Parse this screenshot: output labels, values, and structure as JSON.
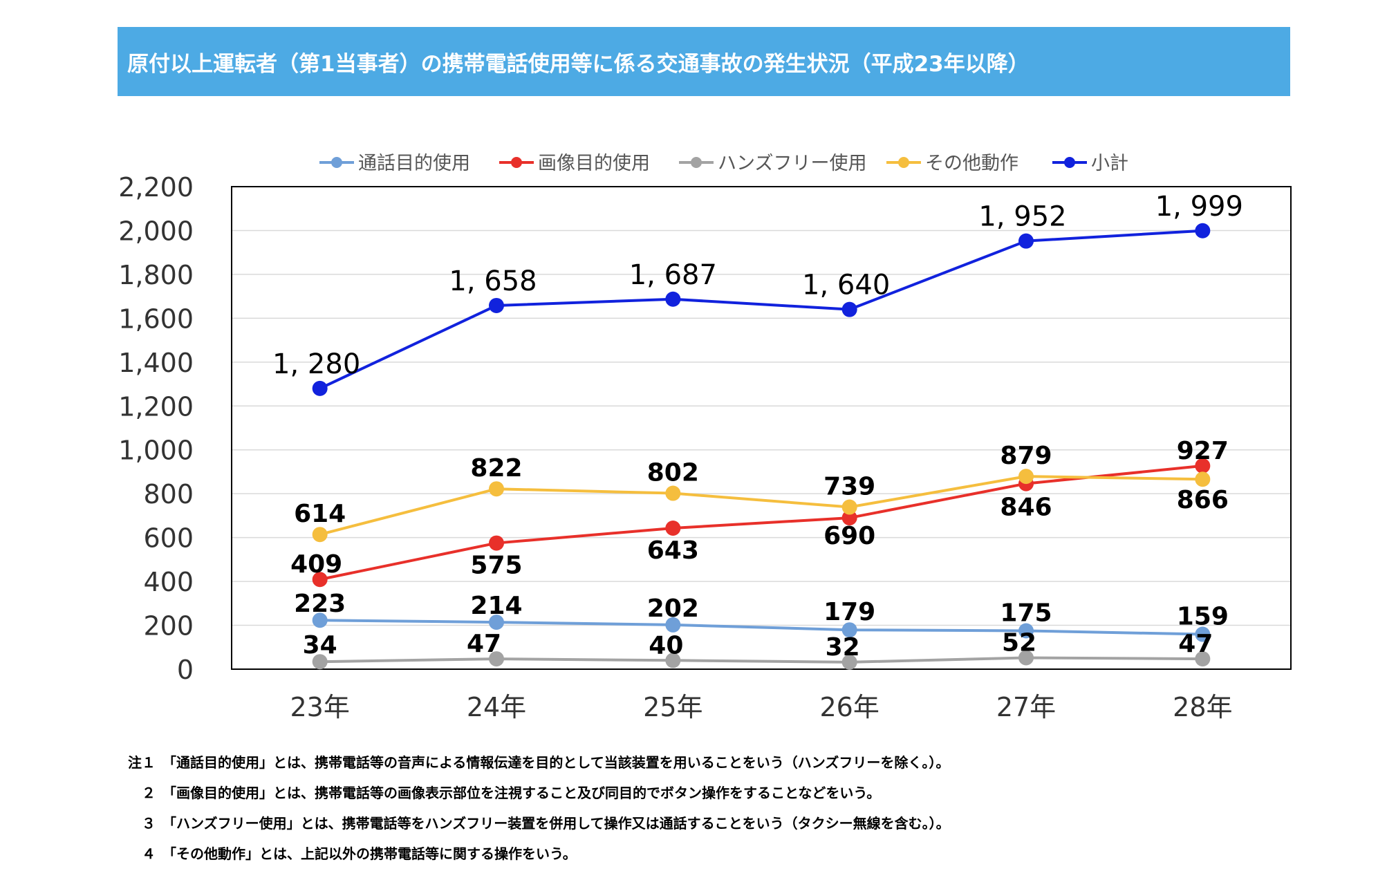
{
  "header": {
    "title": "原付以上運転者（第1当事者）の携帯電話使用等に係る交通事故の発生状況（平成23年以降）"
  },
  "chart_data": {
    "type": "line",
    "categories": [
      "23年",
      "24年",
      "25年",
      "26年",
      "27年",
      "28年"
    ],
    "ylim": [
      0,
      2200
    ],
    "y_ticks": [
      "0",
      "200",
      "400",
      "600",
      "800",
      "1,000",
      "1,200",
      "1,400",
      "1,600",
      "1,800",
      "2,000",
      "2,200"
    ],
    "grid": true,
    "legend_position": "top",
    "series": [
      {
        "name": "通話目的使用",
        "color": "#6f9fd8",
        "values": [
          223,
          214,
          202,
          179,
          175,
          159
        ],
        "labels": [
          "223",
          "214",
          "202",
          "179",
          "175",
          "159"
        ]
      },
      {
        "name": "画像目的使用",
        "color": "#e8302a",
        "values": [
          409,
          575,
          643,
          690,
          846,
          927
        ],
        "labels": [
          "409",
          "575",
          "643",
          "690",
          "846",
          "927"
        ]
      },
      {
        "name": "ハンズフリー使用",
        "color": "#a3a3a3",
        "values": [
          34,
          47,
          40,
          32,
          52,
          47
        ],
        "labels": [
          "34",
          "47",
          "40",
          "32",
          "52",
          "47"
        ]
      },
      {
        "name": "その他動作",
        "color": "#f5be3e",
        "values": [
          614,
          822,
          802,
          739,
          879,
          866
        ],
        "labels": [
          "614",
          "822",
          "802",
          "739",
          "879",
          "866"
        ]
      },
      {
        "name": "小計",
        "color": "#1122dd",
        "values": [
          1280,
          1658,
          1687,
          1640,
          1952,
          1999
        ],
        "labels": [
          "1, 280",
          "1, 658",
          "1, 687",
          "1, 640",
          "1, 952",
          "1, 999"
        ]
      }
    ]
  },
  "notes": [
    {
      "num": "注１",
      "text": "「通話目的使用」とは、携帯電話等の音声による情報伝達を目的として当該装置を用いることをいう（ハンズフリーを除く。）。"
    },
    {
      "num": "２",
      "text": "「画像目的使用」とは、携帯電話等の画像表示部位を注視すること及び同目的でボタン操作をすることなどをいう。"
    },
    {
      "num": "３",
      "text": "「ハンズフリー使用」とは、携帯電話等をハンズフリー装置を併用して操作又は通話することをいう（タクシー無線を含む。）。"
    },
    {
      "num": "４",
      "text": "「その他動作」とは、上記以外の携帯電話等に関する操作をいう。"
    }
  ]
}
